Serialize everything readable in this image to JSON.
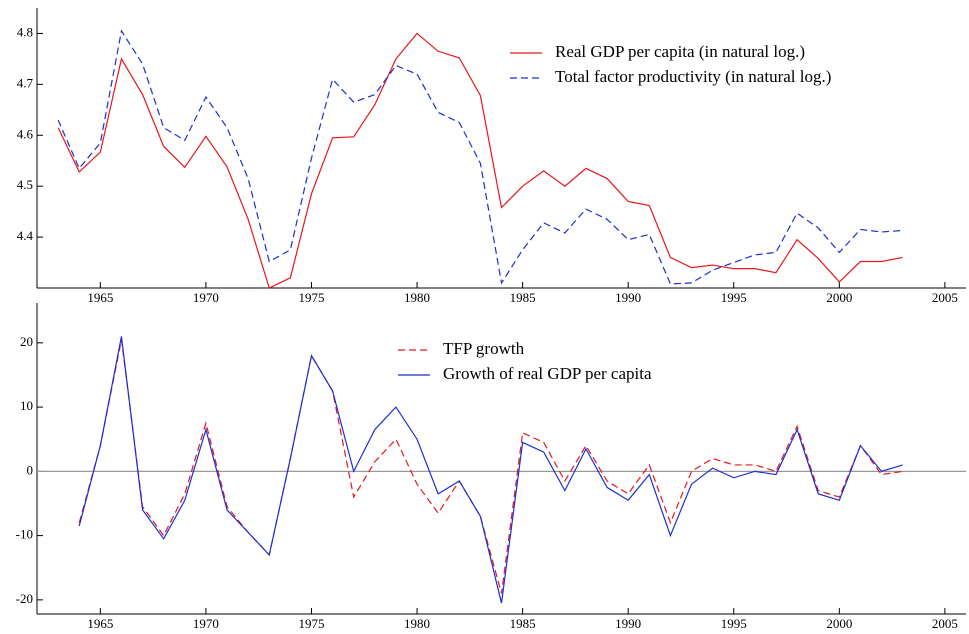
{
  "chart_data": [
    {
      "type": "line",
      "x": [
        1963,
        1964,
        1965,
        1966,
        1967,
        1968,
        1969,
        1970,
        1971,
        1972,
        1973,
        1974,
        1975,
        1976,
        1977,
        1978,
        1979,
        1980,
        1981,
        1982,
        1983,
        1984,
        1985,
        1986,
        1987,
        1988,
        1989,
        1990,
        1991,
        1992,
        1993,
        1994,
        1995,
        1996,
        1997,
        1998,
        1999,
        2000,
        2001,
        2002,
        2003
      ],
      "series": [
        {
          "name": "Real GDP per capita (in natural log.)",
          "color": "#e8161b",
          "style": "solid",
          "values": [
            4.615,
            4.528,
            4.567,
            4.75,
            4.68,
            4.578,
            4.537,
            4.598,
            4.538,
            4.435,
            4.3,
            4.32,
            4.485,
            4.595,
            4.597,
            4.66,
            4.75,
            4.8,
            4.765,
            4.752,
            4.678,
            4.458,
            4.5,
            4.53,
            4.5,
            4.535,
            4.515,
            4.47,
            4.462,
            4.36,
            4.34,
            4.345,
            4.338,
            4.338,
            4.33,
            4.395,
            4.358,
            4.312,
            4.352,
            4.352,
            4.36
          ]
        },
        {
          "name": "Total factor productivity (in natural log.)",
          "color": "#1a2fd6",
          "style": "dashed",
          "values": [
            4.63,
            4.535,
            4.585,
            4.805,
            4.74,
            4.615,
            4.59,
            4.675,
            4.615,
            4.515,
            4.352,
            4.375,
            4.555,
            4.71,
            4.665,
            4.68,
            4.737,
            4.72,
            4.645,
            4.625,
            4.545,
            4.31,
            4.375,
            4.428,
            4.408,
            4.455,
            4.435,
            4.395,
            4.405,
            4.308,
            4.31,
            4.335,
            4.35,
            4.365,
            4.37,
            4.447,
            4.418,
            4.37,
            4.415,
            4.41,
            4.413
          ]
        }
      ],
      "xlim": [
        1962,
        2006
      ],
      "xticks": [
        1965,
        1970,
        1975,
        1980,
        1985,
        1990,
        1995,
        2000,
        2005
      ],
      "ylim": [
        4.3,
        4.85
      ],
      "yticks": [
        4.4,
        4.5,
        4.6,
        4.7,
        4.8
      ],
      "legend": "upper right"
    },
    {
      "type": "line",
      "x": [
        1964,
        1965,
        1966,
        1967,
        1968,
        1969,
        1970,
        1971,
        1972,
        1973,
        1974,
        1975,
        1976,
        1977,
        1978,
        1979,
        1980,
        1981,
        1982,
        1983,
        1984,
        1985,
        1986,
        1987,
        1988,
        1989,
        1990,
        1991,
        1992,
        1993,
        1994,
        1995,
        1996,
        1997,
        1998,
        1999,
        2000,
        2001,
        2002,
        2003
      ],
      "series": [
        {
          "name": "TFP growth",
          "color": "#e8161b",
          "style": "dashed",
          "values": [
            -8,
            4,
            20.5,
            -5.5,
            -10,
            -3.5,
            7.5,
            -5.5,
            -9.5,
            -13,
            2,
            18,
            12.5,
            -4,
            1.5,
            5,
            -2,
            -6.5,
            -1.5,
            -7,
            -19,
            6,
            4.5,
            -1.5,
            4,
            -1.5,
            -3.5,
            1,
            -8,
            0,
            2,
            1,
            1,
            0,
            7,
            -3,
            -4,
            4,
            -0.5,
            0
          ]
        },
        {
          "name": "Growth of real GDP per capita",
          "color": "#1a2fd6",
          "style": "solid",
          "values": [
            -8.5,
            4,
            21,
            -6,
            -10.5,
            -4.5,
            6.5,
            -6,
            -9.5,
            -13,
            2,
            18,
            12.5,
            0,
            6.5,
            10,
            5,
            -3.5,
            -1.5,
            -7,
            -20.5,
            4.5,
            3,
            -3,
            3.5,
            -2.5,
            -4.5,
            -0.5,
            -10,
            -2,
            0.5,
            -1,
            0,
            -0.5,
            6.5,
            -3.5,
            -4.5,
            4,
            0,
            1
          ]
        }
      ],
      "xlim": [
        1962,
        2006
      ],
      "xticks": [
        1965,
        1970,
        1975,
        1980,
        1985,
        1990,
        1995,
        2000,
        2005
      ],
      "ylim": [
        -22.2,
        26.2
      ],
      "yticks": [
        -20,
        -10,
        0,
        10,
        20
      ],
      "reference_line": 0,
      "legend": "upper center"
    }
  ]
}
